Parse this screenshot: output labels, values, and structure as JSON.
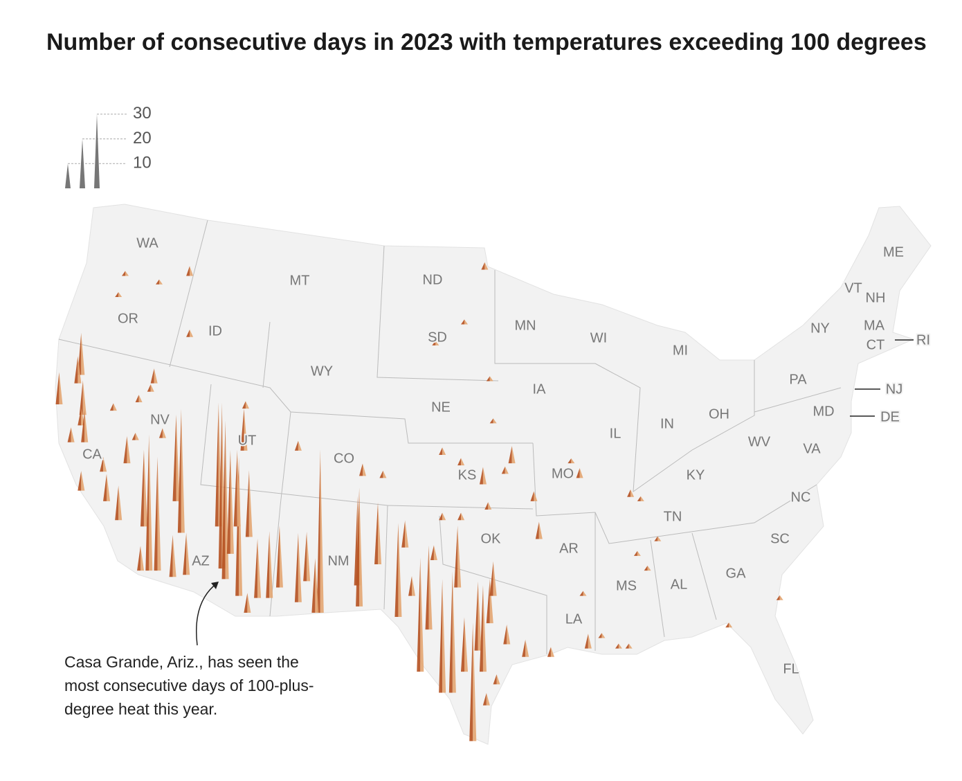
{
  "chart_data": {
    "type": "spike",
    "title": "Number of consecutive days in 2023 with temperatures exceeding 100 degrees",
    "legend_ticks": [
      10,
      20,
      30
    ],
    "colors": [
      "#b5501f",
      "#e3a571"
    ],
    "state_labels": [
      "WA",
      "OR",
      "CA",
      "NV",
      "ID",
      "MT",
      "WY",
      "UT",
      "AZ",
      "CO",
      "NM",
      "ND",
      "SD",
      "NE",
      "KS",
      "OK",
      "MN",
      "IA",
      "MO",
      "AR",
      "LA",
      "WI",
      "IL",
      "MS",
      "MI",
      "IN",
      "KY",
      "TN",
      "AL",
      "OH",
      "GA",
      "FL",
      "SC",
      "NC",
      "VA",
      "WV",
      "PA",
      "NY",
      "MD",
      "DE",
      "NJ",
      "VT",
      "NH",
      "ME",
      "MA",
      "CT",
      "RI"
    ],
    "annotation": [
      "Casa Grande, Ariz., has seen the",
      "most consecutive days of 100-plus-",
      "degree heat this year."
    ],
    "x": [
      -120.6,
      -120.8,
      -121.9,
      -120.5,
      -120.6,
      -120.4,
      -121.2,
      -119.3,
      -120.6,
      -119.1,
      -117.9,
      -118.4,
      -117.1,
      -116.9,
      -116.6,
      -116.1,
      -115.2,
      -115.0,
      -114.7,
      -114.4,
      -116.3,
      -116.5,
      -117.2,
      -118.7,
      -117.4,
      -115.8,
      -112.5,
      -112.3,
      -112.1,
      -111.8,
      -111.3,
      -111.4,
      -110.8,
      -110.7,
      -111.0,
      -110.9,
      -110.2,
      -109.5,
      -108.9,
      -107.8,
      -107.3,
      -106.5,
      -106.8,
      -107.8,
      -104.3,
      -104.2,
      -103.1,
      -102.8,
      -104.0,
      -101.9,
      -101.5,
      -101.1,
      -100.6,
      -100.1,
      -99.8,
      -99.3,
      -98.7,
      -98.4,
      -98.0,
      -97.5,
      -97.2,
      -96.9,
      -96.5,
      -96.3,
      -95.5,
      -94.4,
      -92.9,
      -96.7,
      -96.1,
      -96.9,
      -95.2,
      -93.6,
      -93.9,
      -95.6,
      -98.2,
      -99.3,
      -96.6,
      -98.2,
      -99.3,
      -114.2,
      -116.0,
      -118.0,
      -118.4,
      -114.2,
      -96.8,
      -98.0,
      -99.7,
      -96.5,
      -96.3,
      -91.7,
      -91.2,
      -88.2,
      -87.6,
      -86.6,
      -87.8,
      -87.2,
      -91.0,
      -90.7,
      -89.9,
      -88.9,
      -88.3,
      -82.4,
      -79.4
    ],
    "y": [
      42.9,
      42.5,
      41.5,
      41.0,
      40.5,
      39.7,
      39.7,
      38.3,
      37.4,
      36.9,
      38.7,
      36.0,
      33.6,
      35.7,
      33.6,
      33.6,
      33.3,
      36.9,
      35.4,
      33.4,
      42.5,
      42.1,
      41.6,
      41.2,
      39.8,
      39.9,
      35.7,
      33.7,
      33.2,
      34.4,
      32.4,
      35.7,
      31.6,
      35.2,
      39.3,
      41.3,
      32.3,
      32.3,
      32.8,
      32.1,
      33.1,
      31.6,
      31.6,
      39.3,
      32.9,
      31.9,
      33.9,
      38.0,
      38.1,
      31.4,
      34.7,
      32.4,
      28.8,
      30.8,
      34.1,
      27.8,
      27.8,
      32.8,
      28.8,
      25.5,
      29.8,
      28.8,
      31.1,
      32.4,
      30.1,
      29.5,
      29.5,
      27.2,
      28.2,
      37.7,
      38.7,
      35.1,
      36.9,
      38.2,
      38.6,
      39.1,
      36.5,
      36.0,
      36.0,
      47.6,
      47.2,
      47.6,
      46.6,
      44.7,
      47.9,
      45.3,
      44.3,
      42.6,
      40.6,
      38.7,
      38.0,
      37.1,
      36.9,
      35.0,
      34.3,
      33.6,
      32.4,
      29.9,
      30.4,
      29.9,
      29.9,
      30.9,
      32.2
    ],
    "values": [
      17,
      11,
      13,
      14,
      7,
      13,
      6,
      6,
      8,
      11,
      11,
      14,
      10,
      31,
      55,
      46,
      17,
      35,
      50,
      17,
      6,
      3,
      3,
      3,
      3,
      4,
      50,
      67,
      64,
      42,
      56,
      31,
      8,
      27,
      17,
      3,
      24,
      27,
      25,
      28,
      20,
      66,
      22,
      4,
      36,
      48,
      25,
      3,
      5,
      38,
      11,
      8,
      46,
      34,
      6,
      46,
      49,
      25,
      22,
      48,
      28,
      35,
      18,
      14,
      8,
      7,
      4,
      5,
      4,
      7,
      7,
      7,
      4,
      3,
      3,
      3,
      3,
      3,
      3,
      4,
      2,
      2,
      2,
      3,
      3,
      2,
      2,
      2,
      2,
      2,
      4,
      3,
      2,
      2,
      2,
      2,
      2,
      6,
      2,
      2,
      2,
      2,
      2
    ]
  }
}
